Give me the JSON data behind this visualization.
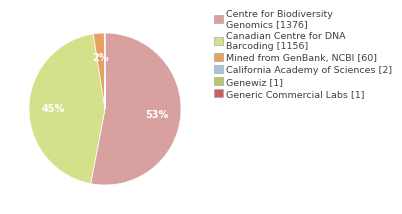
{
  "labels": [
    "Centre for Biodiversity\nGenomics [1376]",
    "Canadian Centre for DNA\nBarcoding [1156]",
    "Mined from GenBank, NCBI [60]",
    "California Academy of Sciences [2]",
    "Genewiz [1]",
    "Generic Commercial Labs [1]"
  ],
  "values": [
    1376,
    1156,
    60,
    2,
    1,
    1
  ],
  "colors": [
    "#d9a0a0",
    "#d4e08a",
    "#e8a060",
    "#a8c4d8",
    "#b8c860",
    "#c86060"
  ],
  "background_color": "#ffffff",
  "text_color": "#404040",
  "font_size": 7.0,
  "legend_font_size": 6.8
}
